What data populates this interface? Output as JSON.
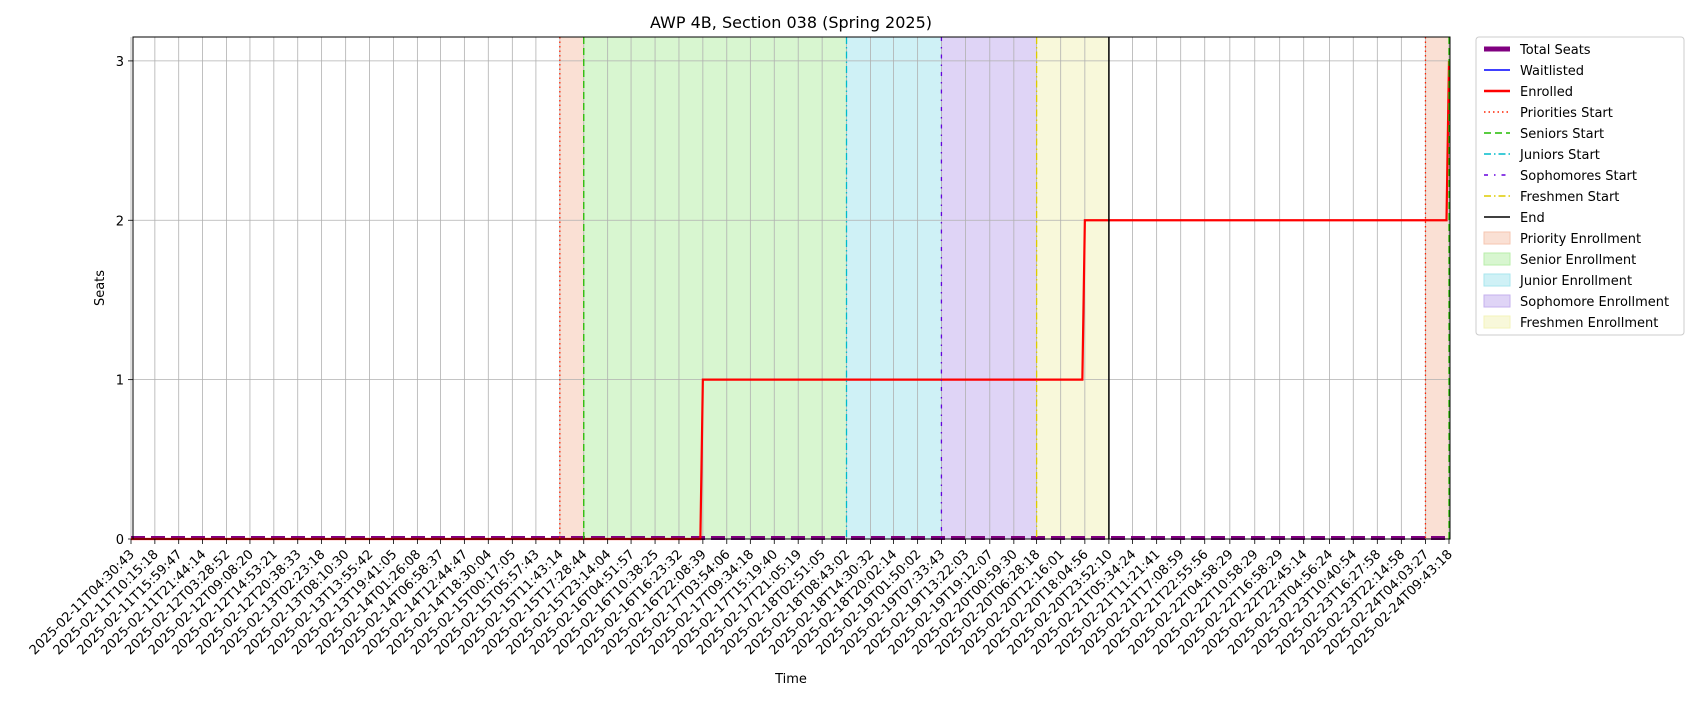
{
  "chart_data": {
    "type": "line",
    "title": "AWP 4B, Section 038 (Spring 2025)",
    "xlabel": "Time",
    "ylabel": "Seats",
    "ylim": [
      0,
      3.15
    ],
    "yticks": [
      "0",
      "1",
      "2",
      "3"
    ],
    "grid": true,
    "legend_position": "outside-right",
    "categories": [
      "2025-02-11T04:30:43",
      "2025-02-11T10:15:18",
      "2025-02-11T15:59:47",
      "2025-02-11T21:44:14",
      "2025-02-12T03:28:52",
      "2025-02-12T09:08:20",
      "2025-02-12T14:53:21",
      "2025-02-12T20:38:33",
      "2025-02-13T02:23:18",
      "2025-02-13T08:10:30",
      "2025-02-13T13:55:42",
      "2025-02-13T19:41:05",
      "2025-02-14T01:26:08",
      "2025-02-14T06:58:37",
      "2025-02-14T12:44:47",
      "2025-02-14T18:30:04",
      "2025-02-15T00:17:05",
      "2025-02-15T05:57:43",
      "2025-02-15T11:43:14",
      "2025-02-15T17:28:44",
      "2025-02-15T23:14:04",
      "2025-02-16T04:51:57",
      "2025-02-16T10:38:25",
      "2025-02-16T16:23:32",
      "2025-02-16T22:08:39",
      "2025-02-17T03:54:06",
      "2025-02-17T09:34:18",
      "2025-02-17T15:19:40",
      "2025-02-17T21:05:19",
      "2025-02-18T02:51:05",
      "2025-02-18T08:43:02",
      "2025-02-18T14:30:32",
      "2025-02-18T20:02:14",
      "2025-02-19T01:50:02",
      "2025-02-19T07:33:43",
      "2025-02-19T13:22:03",
      "2025-02-19T19:12:07",
      "2025-02-20T00:59:30",
      "2025-02-20T06:28:18",
      "2025-02-20T12:16:01",
      "2025-02-20T18:04:56",
      "2025-02-20T23:52:10",
      "2025-02-21T05:34:24",
      "2025-02-21T11:21:41",
      "2025-02-21T17:08:59",
      "2025-02-21T22:55:56",
      "2025-02-22T04:58:29",
      "2025-02-22T10:58:29",
      "2025-02-22T16:58:29",
      "2025-02-22T22:45:14",
      "2025-02-23T04:56:24",
      "2025-02-23T10:40:54",
      "2025-02-23T16:27:58",
      "2025-02-23T22:14:58",
      "2025-02-24T04:03:27",
      "2025-02-24T09:43:18"
    ],
    "series": [
      {
        "name": "Total Seats",
        "color": "#800080",
        "style": "thick-dashed",
        "constant_value": 0
      },
      {
        "name": "Waitlisted",
        "color": "#0000ff",
        "style": "solid-thin",
        "constant_value": 0
      },
      {
        "name": "Enrolled",
        "color": "#ff0000",
        "style": "solid-thick",
        "steps": [
          {
            "x": "2025-02-11T04:30:43",
            "y": 0
          },
          {
            "x": "2025-02-16T22:08:39",
            "y": 1
          },
          {
            "x": "2025-02-20T18:04:56",
            "y": 2
          },
          {
            "x": "2025-02-24T09:43:18",
            "y": 3
          }
        ]
      }
    ],
    "markers": [
      {
        "name": "Priorities Start",
        "color": "#ff2200",
        "style": "dotted",
        "x": [
          "2025-02-15T11:43:14",
          "2025-02-24T04:03:27"
        ]
      },
      {
        "name": "Seniors Start",
        "color": "#22bb00",
        "style": "dashed",
        "x": [
          "2025-02-15T17:28:44",
          "2025-02-24T09:43:18"
        ]
      },
      {
        "name": "Juniors Start",
        "color": "#00bbcc",
        "style": "dashdot",
        "x": [
          "2025-02-18T08:43:02"
        ]
      },
      {
        "name": "Sophomores Start",
        "color": "#6600dd",
        "style": "loose-dashdot",
        "x": [
          "2025-02-19T07:33:43"
        ]
      },
      {
        "name": "Freshmen Start",
        "color": "#ddcc00",
        "style": "dashdot",
        "x": [
          "2025-02-20T06:28:18"
        ]
      },
      {
        "name": "End",
        "color": "#000000",
        "style": "solid",
        "x": [
          "2025-02-20T23:52:10"
        ]
      }
    ],
    "regions": [
      {
        "name": "Priority Enrollment",
        "color": "#f5c6b0",
        "spans": [
          [
            "2025-02-15T11:43:14",
            "2025-02-15T17:28:44"
          ],
          [
            "2025-02-24T04:03:27",
            "2025-02-24T09:43:18"
          ]
        ]
      },
      {
        "name": "Senior Enrollment",
        "color": "#b8eeaa",
        "spans": [
          [
            "2025-02-15T17:28:44",
            "2025-02-18T08:43:02"
          ]
        ]
      },
      {
        "name": "Junior Enrollment",
        "color": "#a8e6ee",
        "spans": [
          [
            "2025-02-18T08:43:02",
            "2025-02-19T07:33:43"
          ]
        ]
      },
      {
        "name": "Sophomore Enrollment",
        "color": "#c5b0ee",
        "spans": [
          [
            "2025-02-19T07:33:43",
            "2025-02-20T06:28:18"
          ]
        ]
      },
      {
        "name": "Freshmen Enrollment",
        "color": "#f3f3bb",
        "spans": [
          [
            "2025-02-20T06:28:18",
            "2025-02-20T23:52:10"
          ]
        ]
      }
    ]
  }
}
